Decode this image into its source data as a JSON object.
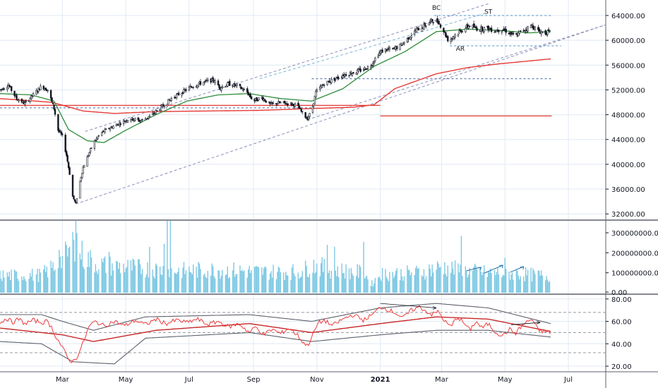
{
  "chart_data": {
    "type": "candlestick",
    "price_axis": {
      "ticks": [
        "64000.00",
        "60000.00",
        "56000.00",
        "52000.00",
        "48000.00",
        "44000.00",
        "40000.00",
        "36000.00",
        "32000.00"
      ],
      "ylim": [
        31000,
        66500
      ]
    },
    "volume_axis": {
      "ticks": [
        "300000000.00",
        "200000000.00",
        "100000000.00",
        "0.00"
      ],
      "ylim": [
        0,
        360000000
      ]
    },
    "oscillator_axis": {
      "ticks": [
        "80.00",
        "60.00",
        "40.00",
        "20.00"
      ],
      "ylim": [
        15,
        83
      ]
    },
    "x_axis": {
      "labels": [
        {
          "text": "Mar",
          "day": 60
        },
        {
          "text": "May",
          "day": 121
        },
        {
          "text": "Jul",
          "day": 182
        },
        {
          "text": "Sep",
          "day": 244
        },
        {
          "text": "Nov",
          "day": 305
        },
        {
          "text": "2021",
          "day": 366,
          "bold": true
        },
        {
          "text": "Mar",
          "day": 425
        },
        {
          "text": "May",
          "day": 486
        },
        {
          "text": "Jul",
          "day": 547
        }
      ],
      "xlim": [
        0,
        583
      ]
    },
    "price_anchors": [
      [
        0,
        52000
      ],
      [
        8,
        52800
      ],
      [
        16,
        50600
      ],
      [
        24,
        49800
      ],
      [
        32,
        51200
      ],
      [
        40,
        52600
      ],
      [
        46,
        52000
      ],
      [
        52,
        49000
      ],
      [
        56,
        45500
      ],
      [
        60,
        44500
      ],
      [
        64,
        41500
      ],
      [
        67,
        38500
      ],
      [
        70,
        34800
      ],
      [
        73,
        33600
      ],
      [
        76,
        36500
      ],
      [
        80,
        39500
      ],
      [
        85,
        41500
      ],
      [
        90,
        43500
      ],
      [
        97,
        45000
      ],
      [
        105,
        45800
      ],
      [
        115,
        46600
      ],
      [
        125,
        47400
      ],
      [
        135,
        47000
      ],
      [
        145,
        47800
      ],
      [
        155,
        49200
      ],
      [
        165,
        50600
      ],
      [
        175,
        51600
      ],
      [
        185,
        52600
      ],
      [
        195,
        53200
      ],
      [
        205,
        53600
      ],
      [
        212,
        52400
      ],
      [
        220,
        53000
      ],
      [
        230,
        52500
      ],
      [
        238,
        51600
      ],
      [
        244,
        50200
      ],
      [
        252,
        50800
      ],
      [
        260,
        49600
      ],
      [
        268,
        49900
      ],
      [
        278,
        49800
      ],
      [
        286,
        49500
      ],
      [
        292,
        48000
      ],
      [
        296,
        47400
      ],
      [
        300,
        48600
      ],
      [
        304,
        51600
      ],
      [
        312,
        53000
      ],
      [
        320,
        53600
      ],
      [
        330,
        54400
      ],
      [
        340,
        54800
      ],
      [
        348,
        55200
      ],
      [
        356,
        55800
      ],
      [
        364,
        57800
      ],
      [
        370,
        58500
      ],
      [
        378,
        58500
      ],
      [
        386,
        59200
      ],
      [
        394,
        60600
      ],
      [
        402,
        61800
      ],
      [
        410,
        62500
      ],
      [
        416,
        63200
      ],
      [
        422,
        63000
      ],
      [
        428,
        61200
      ],
      [
        432,
        59800
      ],
      [
        436,
        60600
      ],
      [
        444,
        61600
      ],
      [
        452,
        62400
      ],
      [
        460,
        61800
      ],
      [
        468,
        62000
      ],
      [
        476,
        61600
      ],
      [
        484,
        61800
      ],
      [
        490,
        61200
      ],
      [
        496,
        60600
      ],
      [
        500,
        61200
      ],
      [
        506,
        61800
      ],
      [
        512,
        62400
      ],
      [
        518,
        61500
      ],
      [
        524,
        61200
      ],
      [
        530,
        61300
      ]
    ],
    "volume_anchors": [
      [
        0,
        85
      ],
      [
        40,
        90
      ],
      [
        55,
        140
      ],
      [
        66,
        200
      ],
      [
        73,
        270
      ],
      [
        80,
        180
      ],
      [
        95,
        140
      ],
      [
        130,
        125
      ],
      [
        170,
        110
      ],
      [
        210,
        115
      ],
      [
        250,
        105
      ],
      [
        290,
        105
      ],
      [
        300,
        140
      ],
      [
        320,
        115
      ],
      [
        350,
        100
      ],
      [
        358,
        45
      ],
      [
        366,
        95
      ],
      [
        400,
        100
      ],
      [
        425,
        130
      ],
      [
        445,
        110
      ],
      [
        470,
        100
      ],
      [
        500,
        95
      ],
      [
        530,
        82
      ]
    ],
    "volume_spikes": [
      [
        73,
        360
      ],
      [
        75,
        300
      ],
      [
        71,
        265
      ],
      [
        138,
        360
      ],
      [
        161,
        360
      ],
      [
        164,
        360
      ],
      [
        158,
        245
      ],
      [
        144,
        230
      ],
      [
        57,
        215
      ],
      [
        105,
        205
      ],
      [
        195,
        210
      ],
      [
        258,
        245
      ],
      [
        315,
        240
      ],
      [
        322,
        230
      ],
      [
        350,
        255
      ],
      [
        444,
        285
      ],
      [
        486,
        175
      ]
    ],
    "osc_anchors": [
      [
        0,
        58
      ],
      [
        6,
        63
      ],
      [
        12,
        59
      ],
      [
        18,
        62
      ],
      [
        24,
        58
      ],
      [
        32,
        61
      ],
      [
        40,
        59
      ],
      [
        46,
        60
      ],
      [
        50,
        54
      ],
      [
        54,
        46
      ],
      [
        58,
        40
      ],
      [
        62,
        33
      ],
      [
        66,
        26
      ],
      [
        70,
        24
      ],
      [
        74,
        28
      ],
      [
        78,
        36
      ],
      [
        82,
        46
      ],
      [
        86,
        56
      ],
      [
        92,
        60
      ],
      [
        100,
        56
      ],
      [
        110,
        60
      ],
      [
        120,
        56
      ],
      [
        130,
        61
      ],
      [
        140,
        57
      ],
      [
        150,
        62
      ],
      [
        160,
        58
      ],
      [
        170,
        61
      ],
      [
        180,
        59
      ],
      [
        190,
        62
      ],
      [
        200,
        57
      ],
      [
        210,
        60
      ],
      [
        220,
        55
      ],
      [
        230,
        58
      ],
      [
        240,
        50
      ],
      [
        246,
        55
      ],
      [
        254,
        48
      ],
      [
        262,
        53
      ],
      [
        270,
        49
      ],
      [
        278,
        54
      ],
      [
        286,
        48
      ],
      [
        292,
        41
      ],
      [
        296,
        38
      ],
      [
        300,
        46
      ],
      [
        306,
        58
      ],
      [
        312,
        61
      ],
      [
        320,
        56
      ],
      [
        330,
        62
      ],
      [
        340,
        66
      ],
      [
        350,
        61
      ],
      [
        360,
        67
      ],
      [
        366,
        73
      ],
      [
        372,
        71
      ],
      [
        380,
        68
      ],
      [
        388,
        63
      ],
      [
        396,
        70
      ],
      [
        404,
        73
      ],
      [
        410,
        69
      ],
      [
        416,
        66
      ],
      [
        422,
        69
      ],
      [
        428,
        60
      ],
      [
        434,
        55
      ],
      [
        440,
        64
      ],
      [
        446,
        59
      ],
      [
        452,
        52
      ],
      [
        458,
        60
      ],
      [
        464,
        54
      ],
      [
        470,
        58
      ],
      [
        476,
        51
      ],
      [
        484,
        47
      ],
      [
        490,
        53
      ],
      [
        496,
        49
      ],
      [
        502,
        56
      ],
      [
        508,
        60
      ],
      [
        512,
        62
      ],
      [
        518,
        52
      ],
      [
        524,
        51
      ],
      [
        530,
        50
      ]
    ],
    "osc_mid_anchors": [
      [
        0,
        54
      ],
      [
        60,
        48
      ],
      [
        90,
        42
      ],
      [
        150,
        52
      ],
      [
        240,
        58
      ],
      [
        300,
        50
      ],
      [
        366,
        58
      ],
      [
        420,
        64
      ],
      [
        470,
        62
      ],
      [
        530,
        51
      ]
    ],
    "osc_upper_anchors": [
      [
        0,
        66
      ],
      [
        40,
        66
      ],
      [
        60,
        60
      ],
      [
        90,
        52
      ],
      [
        140,
        64
      ],
      [
        240,
        66
      ],
      [
        300,
        60
      ],
      [
        366,
        72
      ],
      [
        420,
        76
      ],
      [
        470,
        72
      ],
      [
        530,
        58
      ]
    ],
    "osc_lower_anchors": [
      [
        0,
        42
      ],
      [
        40,
        40
      ],
      [
        70,
        24
      ],
      [
        110,
        22
      ],
      [
        140,
        45
      ],
      [
        240,
        50
      ],
      [
        300,
        42
      ],
      [
        366,
        48
      ],
      [
        420,
        52
      ],
      [
        470,
        52
      ],
      [
        530,
        46
      ]
    ],
    "ma_fast_anchors": [
      [
        0,
        51400
      ],
      [
        30,
        51200
      ],
      [
        52,
        50200
      ],
      [
        66,
        45600
      ],
      [
        84,
        43800
      ],
      [
        100,
        43500
      ],
      [
        120,
        45400
      ],
      [
        150,
        48000
      ],
      [
        180,
        50200
      ],
      [
        210,
        51200
      ],
      [
        240,
        51400
      ],
      [
        270,
        50600
      ],
      [
        300,
        50200
      ],
      [
        330,
        52200
      ],
      [
        360,
        55800
      ],
      [
        390,
        58200
      ],
      [
        420,
        61400
      ],
      [
        450,
        61800
      ],
      [
        480,
        61600
      ],
      [
        510,
        61200
      ],
      [
        530,
        61400
      ]
    ],
    "ma_slow_anchors": [
      [
        0,
        50600
      ],
      [
        50,
        50000
      ],
      [
        80,
        48600
      ],
      [
        110,
        48200
      ],
      [
        150,
        48500
      ],
      [
        200,
        48600
      ],
      [
        250,
        48700
      ],
      [
        300,
        49000
      ],
      [
        340,
        49200
      ],
      [
        360,
        49600
      ],
      [
        380,
        52200
      ],
      [
        420,
        54600
      ],
      [
        450,
        55600
      ],
      [
        480,
        56200
      ],
      [
        530,
        57000
      ]
    ],
    "lines": {
      "resistance_red": {
        "from_day": 0,
        "to_day": 366,
        "y": 49500
      },
      "support_red": {
        "from_day": 366,
        "to_day": 531,
        "y": 47800
      },
      "dotted_high": {
        "from_day": 418,
        "to_day": 531,
        "y": 64000
      },
      "dotted_low": {
        "from_day": 433,
        "to_day": 540,
        "y": 59100
      },
      "dotted_mid": {
        "from_day": 300,
        "to_day": 531,
        "y": 53800
      },
      "dotted_left": {
        "from_day": 0,
        "to_day": 300,
        "y": 49100
      }
    },
    "annotations": [
      {
        "text": "BC",
        "day": 420,
        "y": 64900
      },
      {
        "text": "ST",
        "day": 470,
        "y": 64300
      },
      {
        "text": "AR",
        "day": 443,
        "y": 58300
      }
    ],
    "oscillator_guides": [
      68,
      50,
      32
    ]
  }
}
